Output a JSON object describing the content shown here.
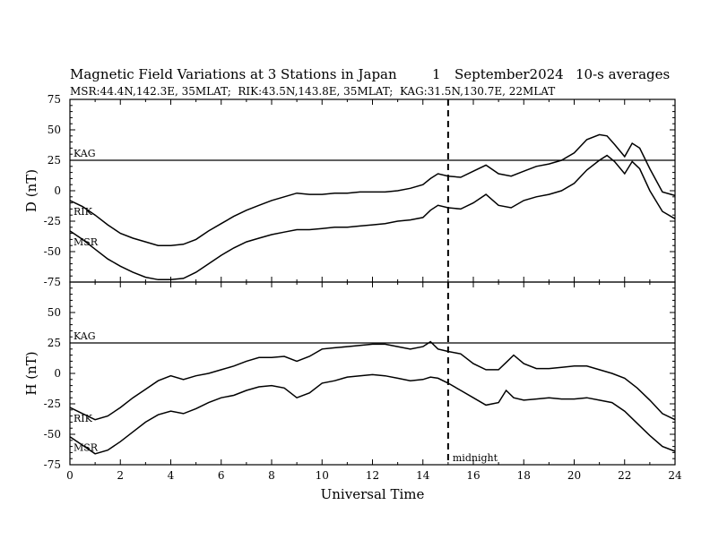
{
  "chart_data": {
    "type": "line",
    "title": "Magnetic Field Variations at 3 Stations in Japan",
    "date_day": "1",
    "date_month_year": "September2024",
    "averaging": "10-s averages",
    "stations_line": "MSR:44.4N,142.3E, 35MLAT;  RIK:43.5N,143.8E, 35MLAT;  KAG:31.5N,130.7E, 22MLAT",
    "xlabel": "Universal Time",
    "xlim": [
      0,
      24
    ],
    "x_ticks": [
      "0",
      "2",
      "4",
      "6",
      "8",
      "10",
      "12",
      "14",
      "16",
      "18",
      "20",
      "22",
      "24"
    ],
    "midnight_x": 15,
    "midnight_label": "midnight",
    "panels": [
      {
        "ylabel": "D (nT)",
        "ylim": [
          -75,
          75
        ],
        "y_ticks": [
          "75",
          "50",
          "25",
          "0",
          "-25",
          "-50",
          "-75"
        ],
        "kag_level": 25,
        "station_labels": {
          "kag": "KAG",
          "rik": "RIK",
          "msr": "MSR"
        },
        "series": [
          {
            "name": "RIK",
            "x": [
              0,
              0.5,
              1,
              1.5,
              2,
              2.5,
              3,
              3.5,
              4,
              4.5,
              5,
              5.5,
              6,
              6.5,
              7,
              7.5,
              8,
              8.5,
              9,
              9.5,
              10,
              10.5,
              11,
              11.5,
              12,
              12.5,
              13,
              13.5,
              14,
              14.3,
              14.6,
              15,
              15.5,
              16,
              16.5,
              17,
              17.5,
              18,
              18.5,
              19,
              19.5,
              20,
              20.5,
              21,
              21.3,
              21.6,
              22,
              22.3,
              22.6,
              23,
              23.5,
              24
            ],
            "y": [
              -8,
              -13,
              -20,
              -28,
              -35,
              -39,
              -42,
              -45,
              -45,
              -44,
              -40,
              -33,
              -27,
              -21,
              -16,
              -12,
              -8,
              -5,
              -2,
              -3,
              -3,
              -2,
              -2,
              -1,
              -1,
              -1,
              0,
              2,
              5,
              10,
              14,
              12,
              11,
              16,
              21,
              14,
              12,
              16,
              20,
              22,
              25,
              31,
              42,
              46,
              45,
              38,
              28,
              39,
              35,
              18,
              -1,
              -4
            ]
          },
          {
            "name": "MSR",
            "x": [
              0,
              0.5,
              1,
              1.5,
              2,
              2.5,
              3,
              3.5,
              4,
              4.5,
              5,
              5.5,
              6,
              6.5,
              7,
              7.5,
              8,
              8.5,
              9,
              9.5,
              10,
              10.5,
              11,
              11.5,
              12,
              12.5,
              13,
              13.5,
              14,
              14.3,
              14.6,
              15,
              15.5,
              16,
              16.5,
              17,
              17.5,
              18,
              18.5,
              19,
              19.5,
              20,
              20.5,
              21,
              21.3,
              21.6,
              22,
              22.3,
              22.6,
              23,
              23.5,
              24
            ],
            "y": [
              -33,
              -40,
              -48,
              -56,
              -62,
              -67,
              -71,
              -73,
              -73,
              -72,
              -67,
              -60,
              -53,
              -47,
              -42,
              -39,
              -36,
              -34,
              -32,
              -32,
              -31,
              -30,
              -30,
              -29,
              -28,
              -27,
              -25,
              -24,
              -22,
              -16,
              -12,
              -14,
              -15,
              -10,
              -3,
              -12,
              -14,
              -8,
              -5,
              -3,
              0,
              6,
              17,
              25,
              29,
              24,
              14,
              24,
              18,
              0,
              -17,
              -23
            ]
          }
        ]
      },
      {
        "ylabel": "H (nT)",
        "ylim": [
          -75,
          75
        ],
        "y_ticks": [
          "75",
          "50",
          "25",
          "0",
          "-25",
          "-50",
          "-75"
        ],
        "kag_level": 25,
        "station_labels": {
          "kag": "KAG",
          "rik": "RIK",
          "msr": "MSR"
        },
        "series": [
          {
            "name": "RIK",
            "x": [
              0,
              0.5,
              1,
              1.5,
              2,
              2.5,
              3,
              3.5,
              4,
              4.5,
              5,
              5.5,
              6,
              6.5,
              7,
              7.5,
              8,
              8.5,
              9,
              9.5,
              10,
              10.5,
              11,
              11.5,
              12,
              12.5,
              13,
              13.5,
              14,
              14.3,
              14.6,
              15,
              15.5,
              16,
              16.5,
              17,
              17.3,
              17.6,
              18,
              18.5,
              19,
              19.5,
              20,
              20.5,
              21,
              21.5,
              22,
              22.5,
              23,
              23.5,
              24
            ],
            "y": [
              -28,
              -33,
              -38,
              -35,
              -28,
              -20,
              -13,
              -6,
              -2,
              -5,
              -2,
              0,
              3,
              6,
              10,
              13,
              13,
              14,
              10,
              14,
              20,
              21,
              22,
              23,
              24,
              24,
              22,
              20,
              22,
              26,
              20,
              18,
              16,
              8,
              3,
              3,
              9,
              15,
              8,
              4,
              4,
              5,
              6,
              6,
              3,
              0,
              -4,
              -12,
              -22,
              -33,
              -38
            ]
          },
          {
            "name": "MSR",
            "x": [
              0,
              0.5,
              1,
              1.5,
              2,
              2.5,
              3,
              3.5,
              4,
              4.5,
              5,
              5.5,
              6,
              6.5,
              7,
              7.5,
              8,
              8.5,
              9,
              9.5,
              10,
              10.5,
              11,
              11.5,
              12,
              12.5,
              13,
              13.5,
              14,
              14.3,
              14.6,
              15,
              15.5,
              16,
              16.5,
              17,
              17.3,
              17.6,
              18,
              18.5,
              19,
              19.5,
              20,
              20.5,
              21,
              21.5,
              22,
              22.5,
              23,
              23.5,
              24
            ],
            "y": [
              -52,
              -59,
              -66,
              -63,
              -56,
              -48,
              -40,
              -34,
              -31,
              -33,
              -29,
              -24,
              -20,
              -18,
              -14,
              -11,
              -10,
              -12,
              -20,
              -16,
              -8,
              -6,
              -3,
              -2,
              -1,
              -2,
              -4,
              -6,
              -5,
              -3,
              -4,
              -8,
              -14,
              -20,
              -26,
              -24,
              -14,
              -20,
              -22,
              -21,
              -20,
              -21,
              -21,
              -20,
              -22,
              -24,
              -31,
              -41,
              -51,
              -60,
              -64
            ]
          }
        ]
      }
    ]
  }
}
